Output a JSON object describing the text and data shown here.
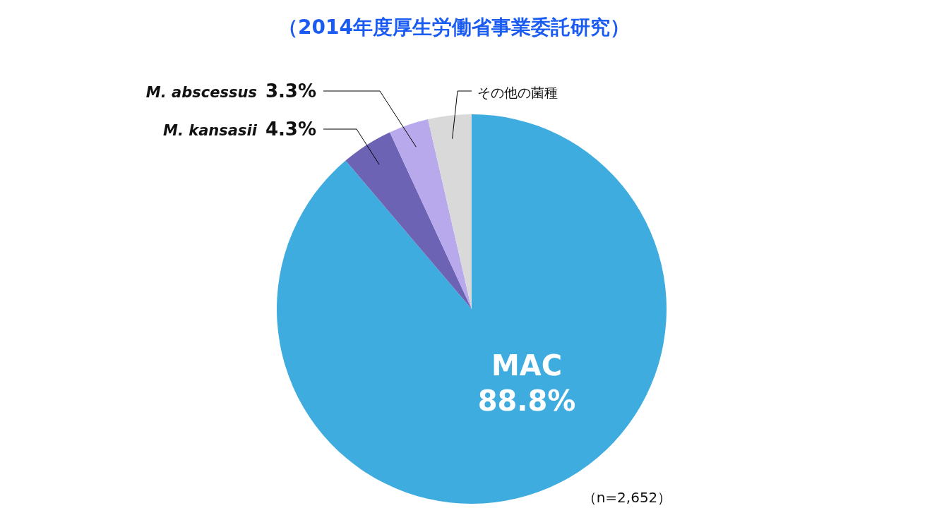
{
  "chart_data": {
    "type": "pie",
    "title": "（2014年度厚生労働省事業委託研究）",
    "categories": [
      "MAC",
      "M. kansasii",
      "M. abscessus",
      "その他の菌種"
    ],
    "values": [
      88.8,
      4.3,
      3.3,
      3.6
    ],
    "value_labels": [
      "88.8%",
      "4.3%",
      "3.3%",
      null
    ],
    "colors": [
      "#3eacdf",
      "#6c63b5",
      "#b7a9ec",
      "#d9d9d9"
    ],
    "annotations": [
      "（n=2,652）"
    ]
  }
}
